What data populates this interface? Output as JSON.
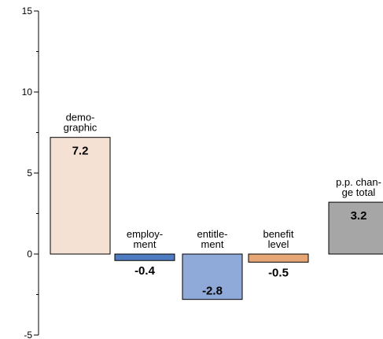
{
  "chart_data": {
    "type": "bar",
    "title": "",
    "xlabel": "",
    "ylabel": "",
    "ylim": [
      -5,
      15
    ],
    "yticks": [
      15,
      10,
      5,
      0,
      -5
    ],
    "grid": false,
    "legend": "none",
    "categories": [
      [
        "demo-",
        "graphic"
      ],
      [
        "employ-",
        "ment"
      ],
      [
        "entitle-",
        "ment"
      ],
      [
        "benefit",
        "level"
      ],
      [
        "p.p. chan-",
        "ge total"
      ]
    ],
    "values": [
      7.2,
      -0.4,
      -2.8,
      -0.5,
      3.2
    ],
    "value_labels": [
      "7.2",
      "-0.4",
      "-2.8",
      "-0.5",
      "3.2"
    ],
    "colors": [
      "#f5e1d3",
      "#4f7cc0",
      "#8fa9d8",
      "#e6a676",
      "#a6a6a6"
    ]
  }
}
